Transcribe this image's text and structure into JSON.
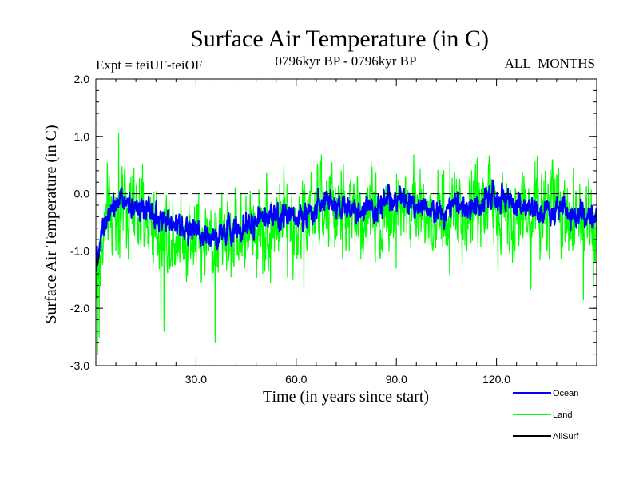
{
  "chart_data": {
    "type": "line",
    "title": "Surface Air Temperature (in C)",
    "subtitle_left": "Expt = teiUF-teiOF",
    "subtitle_center": "0796kyr BP - 0796kyr BP",
    "subtitle_right": "ALL_MONTHS",
    "xlabel": "Time (in years since start)",
    "ylabel": "Surface Air Temperature (in C)",
    "xlim": [
      0,
      150
    ],
    "ylim": [
      -3.0,
      2.0
    ],
    "x_ticks": [
      30,
      60,
      90,
      120
    ],
    "x_tick_labels": [
      "30.0",
      "60.0",
      "90.0",
      "120.0"
    ],
    "y_ticks": [
      -3,
      -2,
      -1,
      0,
      1,
      2
    ],
    "y_tick_labels": [
      "-3.0",
      "-2.0",
      "-1.0",
      "0.0",
      "1.0",
      "2.0"
    ],
    "reference_line_y": 0.0,
    "time_step_years": 0.0833,
    "series": [
      {
        "name": "Land",
        "color": "#00ff00",
        "mean_anchors": [
          [
            0,
            -1.6
          ],
          [
            2,
            -0.8
          ],
          [
            4,
            -0.4
          ],
          [
            8,
            -0.2
          ],
          [
            14,
            -0.4
          ],
          [
            20,
            -0.6
          ],
          [
            28,
            -0.7
          ],
          [
            36,
            -0.8
          ],
          [
            42,
            -0.7
          ],
          [
            50,
            -0.55
          ],
          [
            58,
            -0.45
          ],
          [
            64,
            -0.4
          ],
          [
            68,
            -0.25
          ],
          [
            74,
            -0.35
          ],
          [
            80,
            -0.4
          ],
          [
            86,
            -0.3
          ],
          [
            90,
            -0.25
          ],
          [
            96,
            -0.3
          ],
          [
            102,
            -0.35
          ],
          [
            108,
            -0.3
          ],
          [
            114,
            -0.25
          ],
          [
            120,
            -0.2
          ],
          [
            126,
            -0.3
          ],
          [
            132,
            -0.35
          ],
          [
            140,
            -0.35
          ],
          [
            146,
            -0.45
          ],
          [
            150,
            -0.5
          ]
        ],
        "noise_amplitude": 0.45,
        "extremes": [
          [
            0.5,
            -2.8
          ],
          [
            1.0,
            -2.5
          ],
          [
            6.8,
            1.05
          ],
          [
            19.5,
            -2.2
          ],
          [
            20.4,
            -2.4
          ],
          [
            35.7,
            -2.6
          ],
          [
            52.3,
            -1.55
          ],
          [
            57.4,
            -1.45
          ],
          [
            59.1,
            -1.5
          ],
          [
            62.3,
            -1.65
          ],
          [
            73.5,
            0.4
          ],
          [
            82.5,
            0.55
          ],
          [
            90.0,
            -1.3
          ],
          [
            104.2,
            0.4
          ],
          [
            106.0,
            0.55
          ],
          [
            112.5,
            0.4
          ],
          [
            119.2,
            -0.9
          ],
          [
            131.5,
            0.55
          ],
          [
            132.2,
            0.65
          ],
          [
            138.1,
            0.3
          ],
          [
            143.0,
            0.45
          ],
          [
            146.0,
            -1.85
          ],
          [
            149.0,
            -1.6
          ]
        ]
      },
      {
        "name": "Ocean",
        "color": "#0000ff",
        "mean_anchors": [
          [
            0,
            -1.2
          ],
          [
            2,
            -0.6
          ],
          [
            4,
            -0.2
          ],
          [
            8,
            -0.05
          ],
          [
            14,
            -0.3
          ],
          [
            20,
            -0.5
          ],
          [
            28,
            -0.6
          ],
          [
            36,
            -0.75
          ],
          [
            42,
            -0.6
          ],
          [
            50,
            -0.45
          ],
          [
            58,
            -0.4
          ],
          [
            64,
            -0.35
          ],
          [
            68,
            -0.1
          ],
          [
            74,
            -0.25
          ],
          [
            80,
            -0.3
          ],
          [
            86,
            -0.2
          ],
          [
            90,
            -0.05
          ],
          [
            96,
            -0.25
          ],
          [
            102,
            -0.3
          ],
          [
            108,
            -0.25
          ],
          [
            114,
            -0.2
          ],
          [
            120,
            -0.05
          ],
          [
            126,
            -0.2
          ],
          [
            132,
            -0.3
          ],
          [
            140,
            -0.3
          ],
          [
            146,
            -0.35
          ],
          [
            150,
            -0.45
          ]
        ],
        "noise_amplitude": 0.13
      },
      {
        "name": "AllSurf",
        "color": "#000000",
        "mean_anchors": [
          [
            0,
            -1.15
          ],
          [
            0.5,
            -1.25
          ],
          [
            1,
            -1.05
          ]
        ],
        "noise_amplitude": 0.0
      }
    ],
    "legend_placement": "bottom-right, outside plot",
    "legend": [
      {
        "label": "Ocean",
        "color": "#0000ff"
      },
      {
        "label": "Land",
        "color": "#00ff00"
      },
      {
        "label": "AllSurf",
        "color": "#000000"
      }
    ]
  }
}
